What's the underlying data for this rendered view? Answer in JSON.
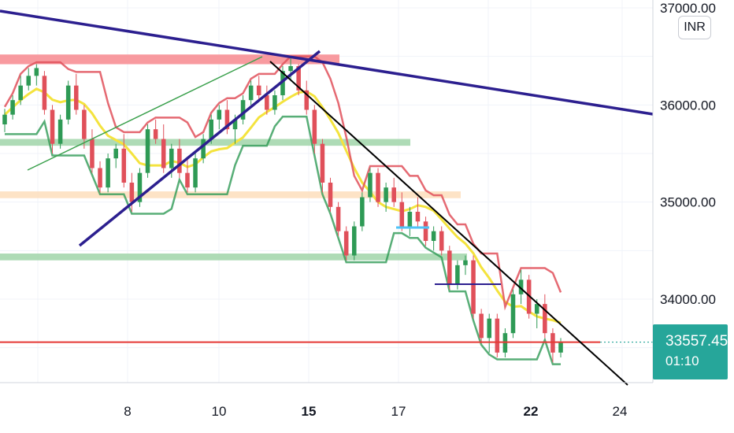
{
  "currency": "INR",
  "colors": {
    "up": "#2e9a55",
    "down": "#e0505a",
    "up_fill": "#e7f4ea",
    "down_fill": "#fbe5e6",
    "trendline": "#2c1f8f",
    "ma_yellow": "#f4e33e",
    "resistance_zone": "#f78f95",
    "support_zone": "#a5d7ae",
    "orange_zone": "#fde0c0",
    "current_price_line": "#e53935",
    "price_box": "#26a69a"
  },
  "current_price": {
    "value": "33557.45",
    "timer": "01:10"
  },
  "chart_data": {
    "type": "candlestick",
    "y_axis": {
      "ticks": [
        "37000.00",
        "36000.00",
        "35000.00",
        "34000.00"
      ],
      "range": [
        32950,
        37050
      ]
    },
    "x_axis": {
      "ticks": [
        "8",
        "10",
        "15",
        "17",
        "22",
        "24"
      ],
      "bold": [
        "15",
        "22"
      ]
    },
    "zones": [
      {
        "name": "resistance",
        "from": 36420,
        "to": 36520
      },
      {
        "name": "support-upper",
        "from": 35580,
        "to": 35650
      },
      {
        "name": "orange",
        "from": 35040,
        "to": 35110
      },
      {
        "name": "support-lower",
        "from": 34400,
        "to": 34470
      }
    ],
    "candles_ohlc": [
      [
        35800,
        35960,
        35720,
        35900
      ],
      [
        35900,
        36100,
        35850,
        36050
      ],
      [
        36050,
        36300,
        36000,
        36200
      ],
      [
        36200,
        36380,
        36150,
        36300
      ],
      [
        36300,
        36420,
        36200,
        36380
      ],
      [
        36300,
        36350,
        35900,
        35950
      ],
      [
        35950,
        36000,
        35500,
        35600
      ],
      [
        35600,
        35900,
        35550,
        35850
      ],
      [
        35850,
        36250,
        35800,
        36200
      ],
      [
        36200,
        36320,
        35900,
        35950
      ],
      [
        35950,
        36000,
        35550,
        35650
      ],
      [
        35650,
        35750,
        35300,
        35350
      ],
      [
        35350,
        35420,
        35100,
        35150
      ],
      [
        35150,
        35500,
        35100,
        35450
      ],
      [
        35450,
        35600,
        35350,
        35550
      ],
      [
        35550,
        35700,
        35150,
        35200
      ],
      [
        35200,
        35300,
        34900,
        35000
      ],
      [
        35000,
        35350,
        34950,
        35300
      ],
      [
        35300,
        35800,
        35250,
        35750
      ],
      [
        35750,
        35850,
        35600,
        35650
      ],
      [
        35650,
        35800,
        35300,
        35350
      ],
      [
        35350,
        35600,
        35250,
        35550
      ],
      [
        35550,
        35650,
        35250,
        35300
      ],
      [
        35300,
        35450,
        35100,
        35150
      ],
      [
        35150,
        35500,
        35100,
        35450
      ],
      [
        35450,
        35700,
        35400,
        35650
      ],
      [
        35650,
        35900,
        35600,
        35850
      ],
      [
        35850,
        36000,
        35750,
        35950
      ],
      [
        35950,
        36050,
        35700,
        35750
      ],
      [
        35750,
        35900,
        35600,
        35850
      ],
      [
        35850,
        36100,
        35800,
        36050
      ],
      [
        36050,
        36250,
        36000,
        36200
      ],
      [
        36200,
        36300,
        36050,
        36100
      ],
      [
        36100,
        36200,
        35900,
        35950
      ],
      [
        35950,
        36150,
        35900,
        36100
      ],
      [
        36100,
        36400,
        36050,
        36350
      ],
      [
        36350,
        36480,
        36250,
        36400
      ],
      [
        36400,
        36420,
        36100,
        36150
      ],
      [
        36150,
        36250,
        35900,
        35950
      ],
      [
        35950,
        36000,
        35500,
        35600
      ],
      [
        35600,
        35650,
        35100,
        35200
      ],
      [
        35200,
        35250,
        34900,
        34950
      ],
      [
        34950,
        35000,
        34650,
        34700
      ],
      [
        34700,
        34750,
        34400,
        34450
      ],
      [
        34450,
        34800,
        34400,
        34750
      ],
      [
        34750,
        35100,
        34700,
        35050
      ],
      [
        35050,
        35350,
        35000,
        35300
      ],
      [
        35300,
        35350,
        34950,
        35000
      ],
      [
        35000,
        35200,
        34900,
        35150
      ],
      [
        35150,
        35250,
        34950,
        35000
      ],
      [
        35000,
        35100,
        34700,
        34750
      ],
      [
        34750,
        34950,
        34650,
        34900
      ],
      [
        34900,
        35050,
        34750,
        34800
      ],
      [
        34800,
        34850,
        34550,
        34600
      ],
      [
        34600,
        34750,
        34500,
        34700
      ],
      [
        34700,
        34750,
        34450,
        34500
      ],
      [
        34500,
        34550,
        34100,
        34150
      ],
      [
        34150,
        34400,
        34100,
        34350
      ],
      [
        34350,
        34450,
        34250,
        34400
      ],
      [
        34400,
        34450,
        33800,
        33850
      ],
      [
        33850,
        33900,
        33550,
        33600
      ],
      [
        33600,
        33850,
        33450,
        33800
      ],
      [
        33800,
        33850,
        33400,
        33450
      ],
      [
        33450,
        33700,
        33400,
        33650
      ],
      [
        33650,
        34100,
        33600,
        34050
      ],
      [
        34050,
        34300,
        33950,
        34200
      ],
      [
        34200,
        34250,
        33800,
        33850
      ],
      [
        33850,
        34000,
        33700,
        33950
      ],
      [
        33950,
        34050,
        33600,
        33650
      ],
      [
        33650,
        33700,
        33350,
        33450
      ],
      [
        33450,
        33600,
        33400,
        33557
      ]
    ]
  }
}
